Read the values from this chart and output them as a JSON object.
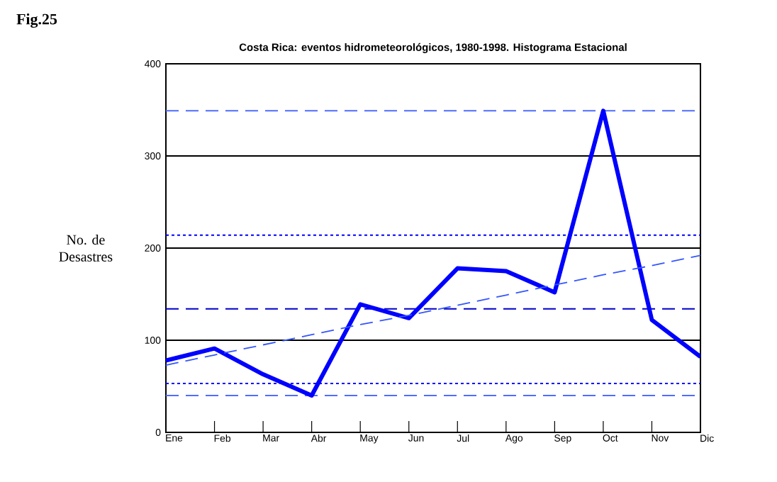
{
  "chart_data": {
    "type": "line",
    "title": "Costa Rica: eventos hidrometeorológicos, 1980-1998. Histograma Estacional",
    "ylabel": "No. de Desastres",
    "annotations": [
      "Fig.25"
    ],
    "categories": [
      "Ene",
      "Feb",
      "Mar",
      "Abr",
      "May",
      "Jun",
      "Jul",
      "Ago",
      "Sep",
      "Oct",
      "Nov",
      "Dic"
    ],
    "series": [
      {
        "color": "#0000ff",
        "values": [
          78,
          91,
          63,
          40,
          139,
          124,
          178,
          175,
          152,
          349,
          122,
          82
        ]
      },
      {
        "color": "#3355ff",
        "line_style": "dashed",
        "values": [
          73,
          84,
          95,
          106,
          117,
          127,
          138,
          149,
          160,
          171,
          181,
          192
        ]
      }
    ],
    "ylim": [
      0,
      400
    ],
    "yticks": [
      0,
      100,
      200,
      300,
      400
    ],
    "grid": "y",
    "marker": "none",
    "ref_lines": [
      {
        "axis": "y",
        "value": 349,
        "color": "#4f6cff",
        "line_style": "dashed"
      },
      {
        "axis": "y",
        "value": 214,
        "color": "#0000ff",
        "line_style": "dotted"
      },
      {
        "axis": "y",
        "value": 134,
        "color": "#0000cc",
        "line_style": "dashed"
      },
      {
        "axis": "y",
        "value": 53,
        "color": "#0000ff",
        "line_style": "dotted"
      },
      {
        "axis": "y",
        "value": 40,
        "color": "#4f6cff",
        "line_style": "dashed"
      }
    ]
  }
}
